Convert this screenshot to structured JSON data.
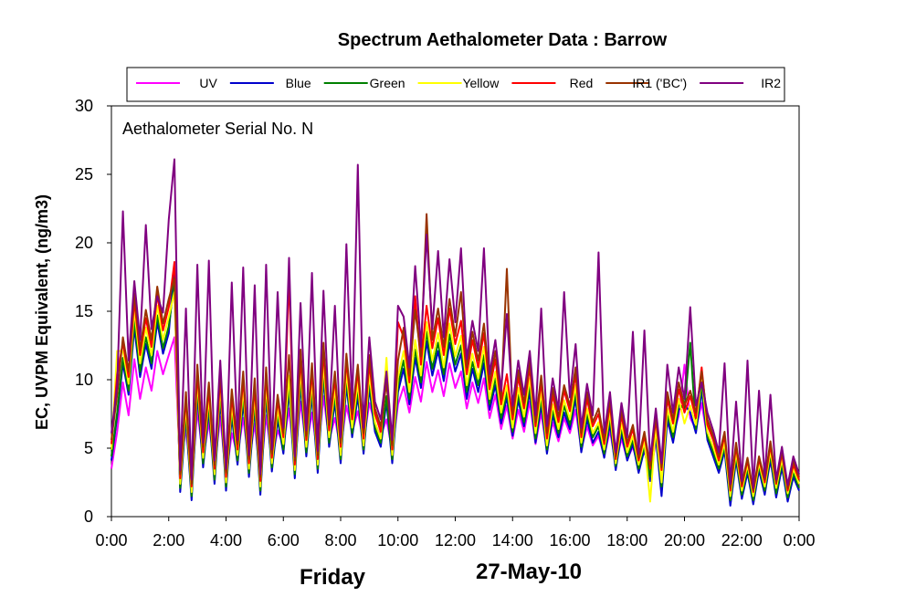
{
  "chart_data": {
    "type": "line",
    "title": "Spectrum Aethalometer Data  :  Barrow",
    "annotation": "Aethalometer  Serial No. N",
    "ylabel": "EC, UVPM Equivalent, (ng/m3)",
    "xlabel_day": "Friday",
    "xlabel_date": "27-May-10",
    "ylim": [
      0,
      30
    ],
    "yticks": [
      "0",
      "5",
      "10",
      "15",
      "20",
      "25",
      "30"
    ],
    "xlim": [
      0,
      24
    ],
    "xticks": [
      "0:00",
      "2:00",
      "4:00",
      "6:00",
      "8:00",
      "10:00",
      "12:00",
      "14:00",
      "16:00",
      "18:00",
      "20:00",
      "22:00",
      "0:00"
    ],
    "legend_position": "top",
    "grid": false,
    "x_hours": [
      0,
      0.2,
      0.4,
      0.6,
      0.8,
      1,
      1.2,
      1.4,
      1.6,
      1.8,
      2,
      2.2,
      2.4,
      2.6,
      2.8,
      3,
      3.2,
      3.4,
      3.6,
      3.8,
      4,
      4.2,
      4.4,
      4.6,
      4.8,
      5,
      5.2,
      5.4,
      5.6,
      5.8,
      6,
      6.2,
      6.4,
      6.6,
      6.8,
      7,
      7.2,
      7.4,
      7.6,
      7.8,
      8,
      8.2,
      8.4,
      8.6,
      8.8,
      9,
      9.2,
      9.4,
      9.6,
      9.8,
      10,
      10.2,
      10.4,
      10.6,
      10.8,
      11,
      11.2,
      11.4,
      11.6,
      11.8,
      12,
      12.2,
      12.4,
      12.6,
      12.8,
      13,
      13.2,
      13.4,
      13.6,
      13.8,
      14,
      14.2,
      14.4,
      14.6,
      14.8,
      15,
      15.2,
      15.4,
      15.6,
      15.8,
      16,
      16.2,
      16.4,
      16.6,
      16.8,
      17,
      17.2,
      17.4,
      17.6,
      17.8,
      18,
      18.2,
      18.4,
      18.6,
      18.8,
      19,
      19.2,
      19.4,
      19.6,
      19.8,
      20,
      20.2,
      20.4,
      20.6,
      20.8,
      21,
      21.2,
      21.4,
      21.6,
      21.8,
      22,
      22.2,
      22.4,
      22.6,
      22.8,
      23,
      23.2,
      23.4,
      23.6,
      23.8,
      24
    ],
    "series": [
      {
        "name": "UV",
        "color": "#FF00FF",
        "values": [
          3.5,
          6.2,
          9.8,
          7.4,
          11.5,
          8.6,
          10.9,
          9.2,
          12.1,
          10.4,
          11.8,
          13.1,
          3.2,
          6.5,
          2.1,
          7.8,
          4.2,
          6.9,
          3.5,
          7.3,
          2.8,
          6.1,
          4.5,
          7.2,
          3.9,
          6.8,
          2.7,
          7.4,
          4.1,
          6.3,
          5.2,
          7.9,
          3.8,
          8.4,
          5.1,
          7.6,
          4.3,
          8.8,
          5.6,
          7.2,
          4.9,
          8.1,
          6.2,
          7.7,
          5.4,
          8.3,
          6.8,
          5.9,
          7.1,
          4.8,
          8.2,
          9.5,
          7.6,
          10.2,
          8.4,
          11.3,
          9.1,
          10.7,
          8.8,
          11.2,
          9.4,
          10.6,
          7.9,
          9.8,
          8.3,
          10.1,
          7.2,
          8.9,
          6.4,
          8.1,
          5.7,
          7.8,
          6.2,
          8.4,
          5.3,
          7.6,
          4.8,
          6.9,
          5.5,
          7.2,
          6.1,
          7.8,
          4.9,
          6.6,
          5.2,
          5.9,
          4.4,
          6.3,
          3.8,
          5.7,
          4.2,
          5.1,
          3.6,
          4.8,
          3.1,
          5.4,
          4.3,
          6.8,
          5.9,
          7.4,
          11.1,
          7.2,
          6.4,
          8.3,
          5.7,
          4.9,
          3.8,
          5.2,
          2.9,
          4.3,
          2.1,
          3.6,
          1.8,
          3.2,
          2.4,
          3.9,
          2.2,
          3.4,
          1.9,
          2.8,
          2.3
        ]
      },
      {
        "name": "Blue",
        "color": "#0000CC",
        "values": [
          4.1,
          7.3,
          11.2,
          8.9,
          13.8,
          10.2,
          12.6,
          10.8,
          14.2,
          11.9,
          13.4,
          18.3,
          1.8,
          7.2,
          1.2,
          8.9,
          3.6,
          7.8,
          2.4,
          8.6,
          1.9,
          7.3,
          3.8,
          8.4,
          2.9,
          7.9,
          1.6,
          8.7,
          3.3,
          7.1,
          4.6,
          9.2,
          2.8,
          9.7,
          4.4,
          8.9,
          3.2,
          10.1,
          5.1,
          8.4,
          3.9,
          9.6,
          5.8,
          8.8,
          4.6,
          9.4,
          6.2,
          5.1,
          8.4,
          3.9,
          9.1,
          10.8,
          8.2,
          11.6,
          9.4,
          12.8,
          10.3,
          12.1,
          9.9,
          12.7,
          10.6,
          11.9,
          8.6,
          10.8,
          9.1,
          11.2,
          7.8,
          9.6,
          6.8,
          8.7,
          5.9,
          8.5,
          6.6,
          9.1,
          5.4,
          8.2,
          4.6,
          7.4,
          5.8,
          7.6,
          6.4,
          8.6,
          4.7,
          7.1,
          5.4,
          6.2,
          4.3,
          6.8,
          3.4,
          6.1,
          4.1,
          5.3,
          3.2,
          4.9,
          2.6,
          5.8,
          1.5,
          7.1,
          5.4,
          7.8,
          8.2,
          7.6,
          6.1,
          9.2,
          5.6,
          4.4,
          3.2,
          4.8,
          0.8,
          4.1,
          1.3,
          3.2,
          0.9,
          3.4,
          1.6,
          4.2,
          1.4,
          3.6,
          1.1,
          2.9,
          1.9
        ]
      },
      {
        "name": "Green",
        "color": "#008000",
        "values": [
          4.4,
          7.6,
          11.6,
          9.2,
          14.3,
          10.6,
          13.1,
          11.2,
          14.7,
          12.3,
          13.9,
          17.1,
          2.1,
          7.6,
          1.5,
          9.4,
          3.9,
          8.2,
          2.7,
          9.1,
          2.2,
          7.7,
          4.1,
          8.9,
          3.2,
          8.4,
          1.9,
          9.2,
          3.6,
          7.5,
          4.9,
          9.7,
          3.1,
          10.2,
          4.7,
          9.4,
          3.5,
          10.6,
          5.4,
          8.9,
          4.2,
          10.1,
          6.1,
          9.3,
          4.9,
          9.9,
          6.5,
          5.4,
          8.8,
          4.2,
          9.6,
          11.4,
          8.6,
          12.2,
          9.8,
          13.5,
          10.8,
          12.7,
          10.4,
          13.3,
          11.1,
          12.5,
          9.1,
          11.3,
          9.6,
          11.8,
          8.2,
          10.1,
          7.2,
          9.1,
          6.2,
          8.9,
          6.9,
          9.6,
          5.7,
          8.6,
          4.9,
          7.8,
          6.1,
          8.1,
          6.7,
          9.1,
          5.1,
          7.5,
          5.8,
          6.6,
          4.6,
          7.2,
          3.7,
          6.5,
          4.4,
          5.6,
          3.5,
          5.2,
          2.9,
          6.2,
          2.2,
          7.5,
          5.8,
          8.2,
          7.9,
          12.7,
          6.4,
          9.7,
          5.9,
          4.7,
          3.5,
          5.1,
          1.2,
          4.4,
          1.6,
          3.5,
          1.2,
          3.7,
          1.9,
          4.5,
          1.7,
          3.9,
          1.4,
          3.2,
          2.1
        ]
      },
      {
        "name": "Yellow",
        "color": "#FFFF00",
        "values": [
          4.9,
          12.1,
          12.1,
          9.7,
          15.1,
          11.2,
          13.8,
          11.8,
          15.4,
          12.9,
          14.6,
          16.4,
          2.4,
          8.1,
          1.8,
          9.9,
          4.3,
          8.7,
          3.1,
          9.6,
          2.5,
          8.2,
          4.5,
          9.4,
          3.5,
          8.9,
          2.2,
          9.7,
          3.9,
          7.9,
          5.3,
          10.3,
          3.4,
          10.8,
          5.1,
          9.9,
          3.8,
          11.2,
          5.8,
          9.4,
          4.5,
          10.6,
          6.5,
          9.8,
          5.2,
          10.4,
          6.9,
          5.7,
          11.6,
          4.5,
          10.2,
          12.1,
          9.1,
          12.9,
          10.3,
          14.2,
          11.4,
          13.4,
          10.9,
          14.1,
          11.7,
          13.2,
          9.6,
          11.9,
          10.1,
          12.4,
          8.6,
          10.6,
          7.6,
          9.6,
          6.5,
          9.4,
          7.3,
          10.1,
          6.1,
          9.1,
          5.2,
          8.2,
          6.4,
          8.5,
          7.1,
          9.6,
          5.4,
          7.9,
          6.1,
          6.9,
          4.9,
          7.6,
          3.9,
          6.8,
          4.7,
          5.9,
          3.8,
          5.5,
          1.1,
          6.5,
          2.5,
          7.9,
          6.2,
          8.6,
          6.8,
          8.1,
          6.7,
          10.2,
          6.2,
          5.1,
          3.8,
          5.4,
          1.5,
          4.7,
          1.9,
          3.8,
          1.5,
          3.9,
          2.2,
          4.8,
          2.1,
          4.2,
          1.7,
          3.5,
          2.4
        ]
      },
      {
        "name": "Red",
        "color": "#FF0000",
        "values": [
          5.3,
          10.4,
          12.7,
          10.2,
          15.8,
          11.8,
          14.5,
          12.4,
          16.2,
          13.6,
          15.3,
          18.6,
          2.8,
          8.7,
          2.2,
          10.5,
          4.7,
          9.3,
          3.5,
          10.2,
          2.9,
          8.8,
          4.9,
          10.1,
          3.9,
          9.5,
          2.6,
          10.4,
          4.3,
          8.5,
          5.8,
          17.5,
          3.8,
          11.6,
          5.6,
          10.6,
          4.2,
          12.1,
          6.3,
          10.1,
          5.1,
          11.4,
          7.1,
          10.6,
          5.7,
          11.2,
          7.5,
          6.2,
          10.3,
          4.9,
          14.2,
          13.1,
          9.8,
          16.1,
          11.1,
          15.4,
          12.3,
          14.5,
          11.8,
          15.2,
          12.6,
          14.3,
          10.4,
          12.9,
          10.9,
          13.4,
          9.3,
          11.5,
          8.2,
          10.4,
          7.1,
          10.2,
          7.9,
          10.9,
          6.6,
          9.8,
          5.7,
          8.9,
          6.9,
          9.2,
          7.7,
          10.4,
          5.8,
          8.6,
          6.6,
          7.5,
          5.3,
          8.2,
          4.2,
          7.4,
          5.1,
          6.4,
          4.1,
          5.9,
          3.5,
          7.1,
          3.4,
          8.6,
          6.8,
          9.3,
          7.6,
          8.8,
          7.2,
          10.9,
          6.7,
          5.6,
          4.1,
          5.9,
          1.9,
          5.1,
          2.2,
          4.1,
          1.8,
          4.2,
          2.5,
          5.2,
          2.4,
          4.6,
          1.9,
          3.8,
          2.7
        ]
      },
      {
        "name": "IR1 ('BC')",
        "color": "#993300",
        "values": [
          5.6,
          8.9,
          13.1,
          10.6,
          16.3,
          12.2,
          15.1,
          12.9,
          16.8,
          14.1,
          15.9,
          17.4,
          3.1,
          9.1,
          2.4,
          11.1,
          5.1,
          9.8,
          3.8,
          10.7,
          3.2,
          9.3,
          5.3,
          10.6,
          4.2,
          10.1,
          2.9,
          10.9,
          4.6,
          8.9,
          6.1,
          11.8,
          4.1,
          12.2,
          5.9,
          11.2,
          4.5,
          12.7,
          6.7,
          10.6,
          5.4,
          11.9,
          7.5,
          11.1,
          6.1,
          11.8,
          7.9,
          6.6,
          9.8,
          5.2,
          11.4,
          13.8,
          10.3,
          15.1,
          11.7,
          22.1,
          12.9,
          15.2,
          12.4,
          15.9,
          13.2,
          16.4,
          10.9,
          13.5,
          11.4,
          14.1,
          9.8,
          12.1,
          8.6,
          18.1,
          7.5,
          10.7,
          8.3,
          11.4,
          6.9,
          10.3,
          6.1,
          9.4,
          7.3,
          9.6,
          8.1,
          10.9,
          6.1,
          9.1,
          6.9,
          7.9,
          5.6,
          8.6,
          4.4,
          7.8,
          5.4,
          6.7,
          4.3,
          6.2,
          3.7,
          7.4,
          3.6,
          9.1,
          7.1,
          9.8,
          8.1,
          9.2,
          7.6,
          10.6,
          7.1,
          5.9,
          4.4,
          6.2,
          2.1,
          5.4,
          2.4,
          4.3,
          1.9,
          4.4,
          2.7,
          5.5,
          2.5,
          4.8,
          2.1,
          4.1,
          2.9
        ]
      },
      {
        "name": "IR2",
        "color": "#800080",
        "values": [
          6.1,
          9.6,
          22.3,
          11.4,
          17.2,
          12.9,
          21.3,
          13.7,
          16.1,
          14.9,
          21.7,
          26.1,
          3.4,
          15.2,
          2.7,
          18.4,
          5.4,
          18.7,
          4.1,
          11.4,
          3.5,
          17.1,
          5.6,
          18.2,
          4.5,
          16.9,
          3.1,
          18.4,
          4.9,
          16.4,
          6.5,
          18.9,
          4.4,
          15.6,
          6.3,
          17.8,
          4.8,
          16.5,
          7.1,
          15.4,
          5.8,
          19.9,
          7.9,
          25.7,
          6.5,
          13.1,
          8.4,
          7.1,
          10.6,
          5.6,
          15.4,
          14.6,
          10.9,
          18.3,
          12.4,
          20.6,
          13.7,
          19.4,
          13.1,
          18.8,
          14.2,
          19.6,
          11.5,
          14.3,
          12.1,
          19.6,
          10.4,
          12.9,
          9.2,
          14.8,
          8.1,
          11.4,
          8.9,
          12.1,
          7.4,
          15.2,
          6.6,
          10.1,
          7.8,
          16.4,
          8.7,
          12.6,
          6.5,
          9.7,
          7.4,
          19.3,
          6.1,
          9.1,
          4.7,
          8.3,
          5.8,
          13.5,
          4.6,
          13.6,
          4.1,
          7.9,
          3.9,
          11.1,
          7.6,
          10.9,
          8.6,
          15.3,
          8.1,
          9.8,
          7.6,
          6.3,
          4.7,
          11.2,
          2.4,
          8.4,
          2.6,
          11.4,
          2.1,
          9.2,
          2.9,
          8.9,
          2.7,
          5.1,
          2.3,
          4.4,
          3.1
        ]
      }
    ]
  }
}
